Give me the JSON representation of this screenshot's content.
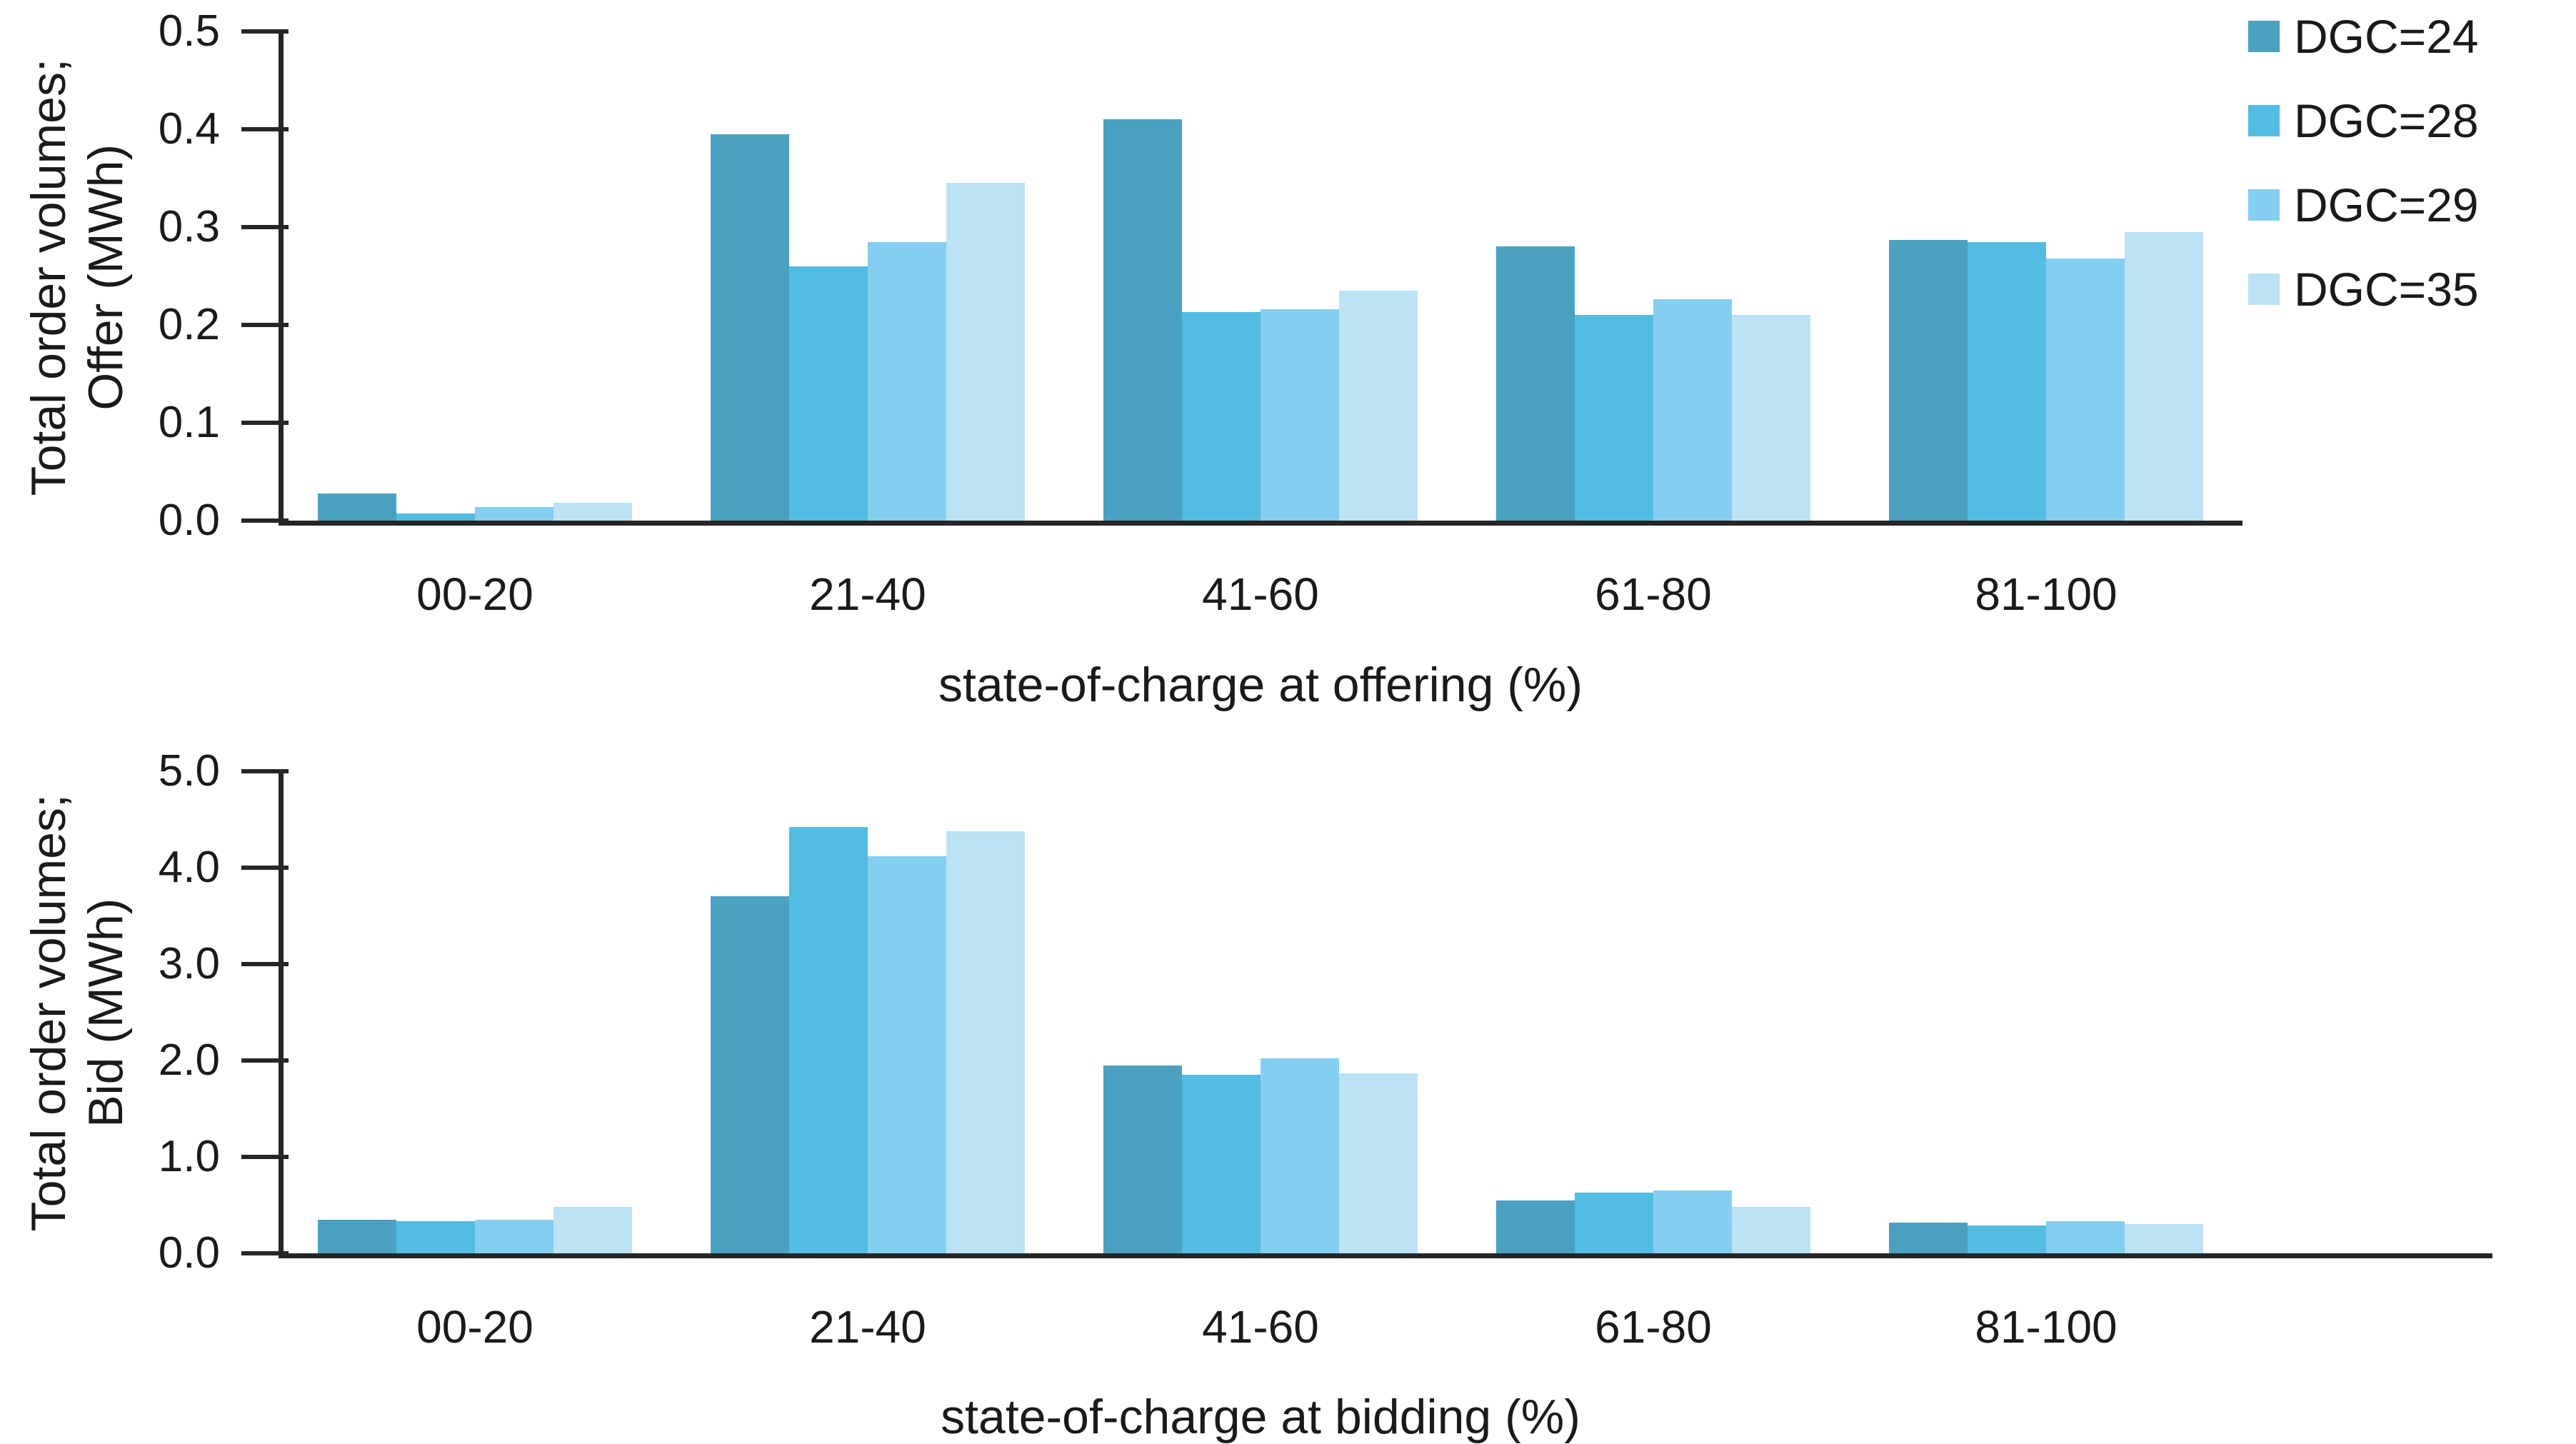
{
  "figure": {
    "background": "#ffffff",
    "text_color": "#1a1a1a",
    "axis_color": "#262626"
  },
  "legend": {
    "position": "top-right",
    "entries": [
      {
        "label": "DGC=24",
        "color": "#4AA1C2"
      },
      {
        "label": "DGC=28",
        "color": "#53BCE2"
      },
      {
        "label": "DGC=29",
        "color": "#84CEEF"
      },
      {
        "label": "DGC=35",
        "color": "#BCE2F5"
      }
    ]
  },
  "chart_data": [
    {
      "type": "bar",
      "title": "",
      "xlabel": "state-of-charge at offering (%)",
      "ylabel_line1": "Total order volumes;",
      "ylabel_line2": "Offer (MWh)",
      "categories": [
        "00-20",
        "21-40",
        "41-60",
        "61-80",
        "81-100"
      ],
      "series": [
        {
          "name": "DGC=24",
          "color": "#4AA1C2",
          "values": [
            0.028,
            0.395,
            0.41,
            0.28,
            0.287
          ]
        },
        {
          "name": "DGC=28",
          "color": "#53BCE2",
          "values": [
            0.007,
            0.26,
            0.213,
            0.21,
            0.285
          ]
        },
        {
          "name": "DGC=29",
          "color": "#84CEEF",
          "values": [
            0.014,
            0.285,
            0.216,
            0.226,
            0.268
          ]
        },
        {
          "name": "DGC=35",
          "color": "#BCE2F5",
          "values": [
            0.018,
            0.345,
            0.235,
            0.21,
            0.295
          ]
        }
      ],
      "ylim": [
        0.0,
        0.5
      ],
      "yticks": [
        "0.0",
        "0.1",
        "0.2",
        "0.3",
        "0.4",
        "0.5"
      ],
      "grid": false,
      "legend_position": "outside-top-right"
    },
    {
      "type": "bar",
      "title": "",
      "xlabel": "state-of-charge at bidding (%)",
      "ylabel_line1": "Total order volumes;",
      "ylabel_line2": "Bid (MWh)",
      "categories": [
        "00-20",
        "21-40",
        "41-60",
        "61-80",
        "81-100"
      ],
      "series": [
        {
          "name": "DGC=24",
          "color": "#4AA1C2",
          "values": [
            0.35,
            3.7,
            1.95,
            0.55,
            0.32
          ]
        },
        {
          "name": "DGC=28",
          "color": "#53BCE2",
          "values": [
            0.33,
            4.42,
            1.85,
            0.63,
            0.29
          ]
        },
        {
          "name": "DGC=29",
          "color": "#84CEEF",
          "values": [
            0.35,
            4.12,
            2.02,
            0.65,
            0.33
          ]
        },
        {
          "name": "DGC=35",
          "color": "#BCE2F5",
          "values": [
            0.48,
            4.38,
            1.87,
            0.48,
            0.3
          ]
        }
      ],
      "ylim": [
        0.0,
        5.0
      ],
      "yticks": [
        "0.0",
        "1.0",
        "2.0",
        "3.0",
        "4.0",
        "5.0"
      ],
      "grid": false,
      "legend_position": "none"
    }
  ]
}
